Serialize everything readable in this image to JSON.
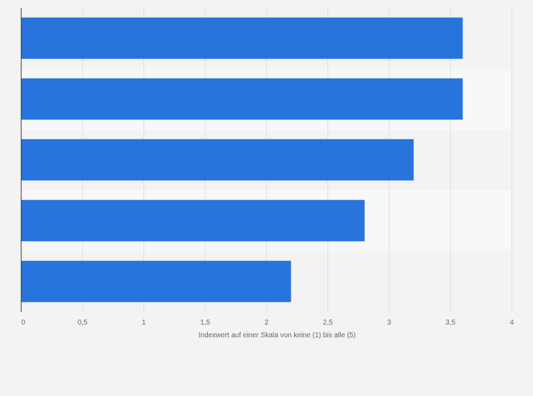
{
  "chart_data": {
    "type": "bar",
    "orientation": "horizontal",
    "categories": [
      "",
      "",
      "",
      "",
      ""
    ],
    "values": [
      3.6,
      3.6,
      3.2,
      2.8,
      2.2
    ],
    "xlabel": "Indexwert auf einer Skala von keine (1) bis alle (5)",
    "ylabel": "",
    "xlim": [
      0,
      4
    ],
    "x_ticks": [
      0,
      0.5,
      1,
      1.5,
      2,
      2.5,
      3,
      3.5,
      4
    ],
    "x_tick_labels": [
      "0",
      "0,5",
      "1",
      "1,5",
      "2",
      "2,5",
      "3",
      "3,5",
      "4"
    ],
    "grid": true,
    "colors": {
      "bar": "#2775dc",
      "background": "#f3f3f3",
      "band_light": "#f8f8f8",
      "band_dark": "#f3f3f3",
      "grid": "#dddddd",
      "axis": "#333333",
      "text": "#666666"
    }
  }
}
